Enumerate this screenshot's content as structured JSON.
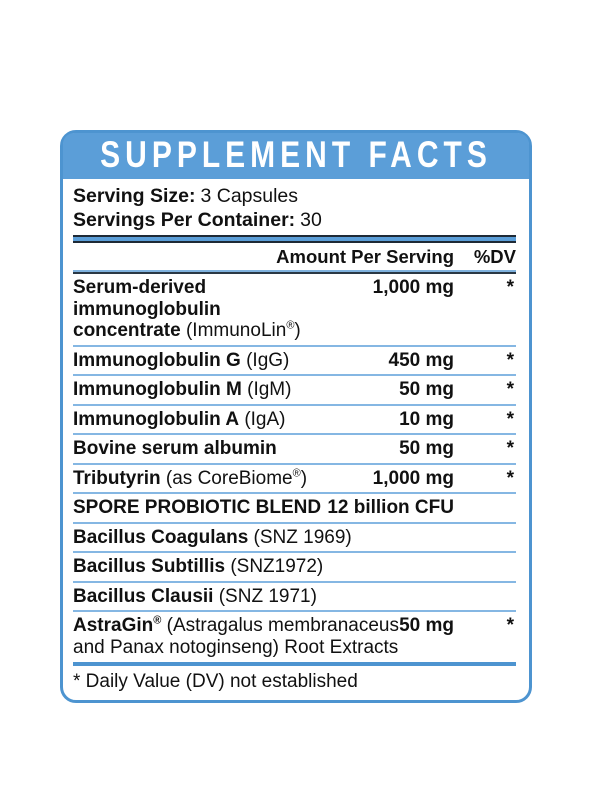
{
  "label": {
    "title": "SUPPLEMENT FACTS",
    "serving": {
      "size_label": "Serving Size:",
      "size_value": "3 Capsules",
      "container_label": "Servings Per Container:",
      "container_value": "30"
    },
    "columns": {
      "amount": "Amount Per Serving",
      "dv": "%DV"
    },
    "rows": [
      {
        "name_lines": [
          [
            {
              "t": "Serum-derived",
              "b": 1
            }
          ],
          [
            {
              "t": "immunoglobulin",
              "b": 1
            }
          ],
          [
            {
              "t": "concentrate",
              "b": 1
            },
            {
              "t": " (ImmunoLin",
              "b": 0
            },
            {
              "t": "®",
              "b": 0,
              "sup": 1
            },
            {
              "t": ")",
              "b": 0
            }
          ]
        ],
        "amount": "1,000 mg",
        "dv": "*"
      },
      {
        "name_lines": [
          [
            {
              "t": "Immunoglobulin G",
              "b": 1
            },
            {
              "t": " (IgG)",
              "b": 0
            }
          ]
        ],
        "amount": "450 mg",
        "dv": "*"
      },
      {
        "name_lines": [
          [
            {
              "t": "Immunoglobulin M",
              "b": 1
            },
            {
              "t": " (IgM)",
              "b": 0
            }
          ]
        ],
        "amount": "50 mg",
        "dv": "*"
      },
      {
        "name_lines": [
          [
            {
              "t": "Immunoglobulin A",
              "b": 1
            },
            {
              "t": " (IgA)",
              "b": 0
            }
          ]
        ],
        "amount": "10 mg",
        "dv": "*"
      },
      {
        "name_lines": [
          [
            {
              "t": "Bovine serum albumin",
              "b": 1
            }
          ]
        ],
        "amount": "50 mg",
        "dv": "*"
      },
      {
        "name_lines": [
          [
            {
              "t": "Tributyrin",
              "b": 1
            },
            {
              "t": " (as CoreBiome",
              "b": 0
            },
            {
              "t": "®",
              "b": 0,
              "sup": 1
            },
            {
              "t": ")",
              "b": 0
            }
          ]
        ],
        "amount": "1,000 mg",
        "dv": "*"
      },
      {
        "name_lines": [
          [
            {
              "t": "SPORE PROBIOTIC BLEND",
              "b": 1
            }
          ]
        ],
        "amount": "12 billion CFU",
        "dv": ""
      },
      {
        "name_lines": [
          [
            {
              "t": "Bacillus Coagulans",
              "b": 1
            },
            {
              "t": " (SNZ 1969)",
              "b": 0
            }
          ]
        ],
        "amount": "",
        "dv": ""
      },
      {
        "name_lines": [
          [
            {
              "t": "Bacillus Subtillis",
              "b": 1
            },
            {
              "t": " (SNZ1972)",
              "b": 0
            }
          ]
        ],
        "amount": "",
        "dv": ""
      },
      {
        "name_lines": [
          [
            {
              "t": "Bacillus Clausii",
              "b": 1
            },
            {
              "t": " (SNZ 1971)",
              "b": 0
            }
          ]
        ],
        "amount": "",
        "dv": ""
      },
      {
        "name_lines": [
          [
            {
              "t": "AstraGin",
              "b": 1
            },
            {
              "t": "®",
              "b": 1,
              "sup": 1
            },
            {
              "t": " (Astragalus membranaceus",
              "b": 0
            }
          ],
          [
            {
              "t": "and Panax notoginseng) Root Extracts",
              "b": 0
            }
          ]
        ],
        "amount": "50 mg",
        "dv": "*"
      }
    ],
    "footnote": "* Daily Value (DV) not established",
    "colors": {
      "header_blue": "#5B9ED8",
      "border_blue": "#4D94D0",
      "separator_blue": "#85B7E3",
      "dark_navy": "#1E2A36",
      "text": "#111111",
      "title_text": "#FFFFFF",
      "background": "#FFFFFF"
    }
  }
}
